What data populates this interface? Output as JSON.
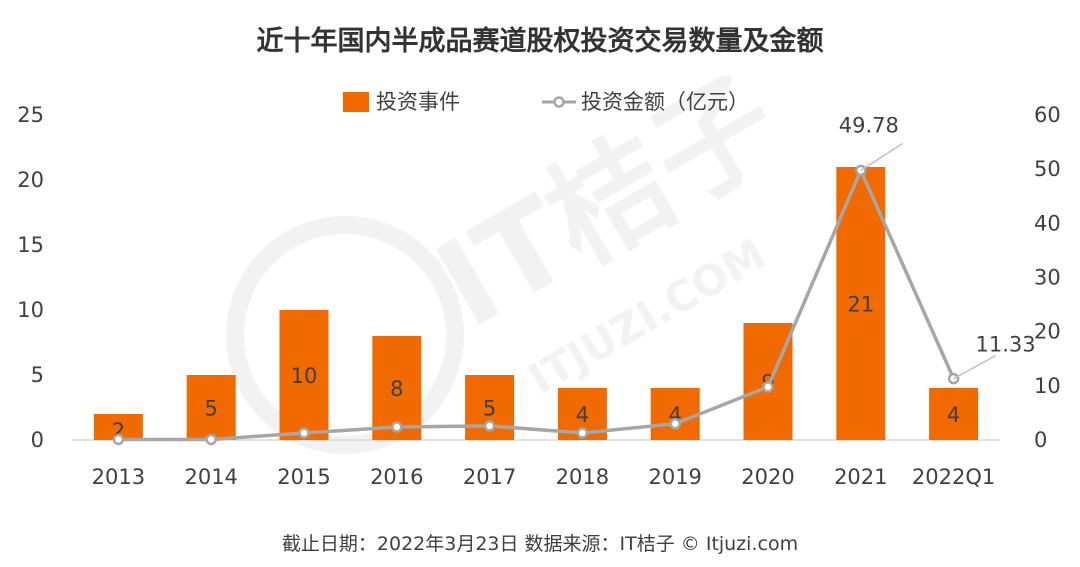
{
  "chart_data": {
    "type": "bar",
    "title": "近十年国内半成品赛道股权投资交易数量及金额",
    "categories": [
      "2013",
      "2014",
      "2015",
      "2016",
      "2017",
      "2018",
      "2019",
      "2020",
      "2021",
      "2022Q1"
    ],
    "series": [
      {
        "name": "投资事件",
        "type": "bar",
        "axis": "left",
        "color": "#f06a00",
        "values": [
          2,
          5,
          10,
          8,
          5,
          4,
          4,
          9,
          21,
          4
        ]
      },
      {
        "name": "投资金额（亿元）",
        "type": "line",
        "axis": "right",
        "color": "#a6a6a6",
        "values": [
          0.1,
          0.1,
          1.3,
          2.4,
          2.6,
          1.3,
          3.0,
          9.8,
          49.78,
          11.33
        ],
        "labeled_points": {
          "8": "49.78",
          "9": "11.33"
        }
      }
    ],
    "y_left": {
      "min": 0,
      "max": 25,
      "ticks": [
        "0",
        "5",
        "10",
        "15",
        "20",
        "25"
      ]
    },
    "y_right": {
      "min": 0,
      "max": 60,
      "ticks": [
        "0",
        "10",
        "20",
        "30",
        "40",
        "50",
        "60"
      ]
    },
    "legend_position": "top-center",
    "grid": false
  },
  "watermark": {
    "main": "IT桔子",
    "sub": "ITJUZI.COM"
  },
  "footer": "截止日期：2022年3月23日     数据来源：IT桔子 © Itjuzi.com"
}
